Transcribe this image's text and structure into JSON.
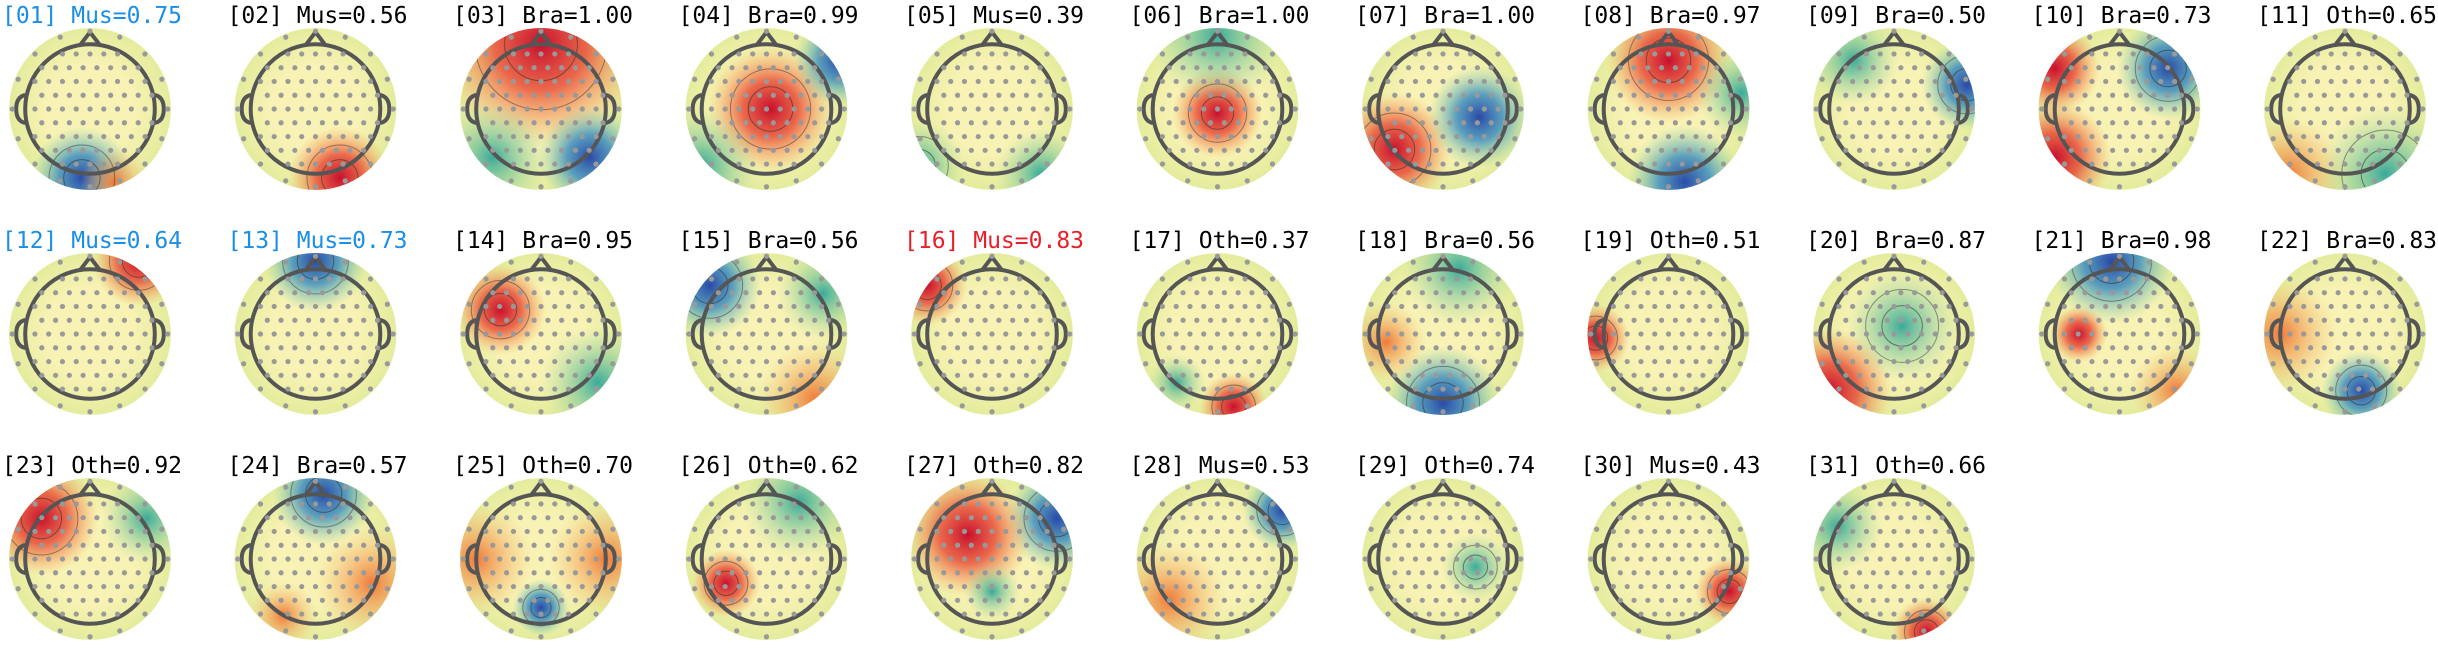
{
  "components": [
    {
      "title": "[01] Mus=0.75",
      "color": "#1a8fe3"
    },
    {
      "title": "[02] Mus=0.56",
      "color": "#000000"
    },
    {
      "title": "[03] Bra=1.00",
      "color": "#000000"
    },
    {
      "title": "[04] Bra=0.99",
      "color": "#000000"
    },
    {
      "title": "[05] Mus=0.39",
      "color": "#000000"
    },
    {
      "title": "[06] Bra=1.00",
      "color": "#000000"
    },
    {
      "title": "[07] Bra=1.00",
      "color": "#000000"
    },
    {
      "title": "[08] Bra=0.97",
      "color": "#000000"
    },
    {
      "title": "[09] Bra=0.50",
      "color": "#000000"
    },
    {
      "title": "[10] Bra=0.73",
      "color": "#000000"
    },
    {
      "title": "[11] Oth=0.65",
      "color": "#000000"
    },
    {
      "title": "[12] Mus=0.64",
      "color": "#1a8fe3"
    },
    {
      "title": "[13] Mus=0.73",
      "color": "#1a8fe3"
    },
    {
      "title": "[14] Bra=0.95",
      "color": "#000000"
    },
    {
      "title": "[15] Bra=0.56",
      "color": "#000000"
    },
    {
      "title": "[16] Mus=0.83",
      "color": "#e8202a"
    },
    {
      "title": "[17] Oth=0.37",
      "color": "#000000"
    },
    {
      "title": "[18] Bra=0.56",
      "color": "#000000"
    },
    {
      "title": "[19] Oth=0.51",
      "color": "#000000"
    },
    {
      "title": "[20] Bra=0.87",
      "color": "#000000"
    },
    {
      "title": "[21] Bra=0.98",
      "color": "#000000"
    },
    {
      "title": "[22] Bra=0.83",
      "color": "#000000"
    },
    {
      "title": "[23] Oth=0.92",
      "color": "#000000"
    },
    {
      "title": "[24] Bra=0.57",
      "color": "#000000"
    },
    {
      "title": "[25] Oth=0.70",
      "color": "#000000"
    },
    {
      "title": "[26] Oth=0.62",
      "color": "#000000"
    },
    {
      "title": "[27] Oth=0.82",
      "color": "#000000"
    },
    {
      "title": "[28] Mus=0.53",
      "color": "#000000"
    },
    {
      "title": "[29] Oth=0.74",
      "color": "#000000"
    },
    {
      "title": "[30] Mus=0.43",
      "color": "#000000"
    },
    {
      "title": "[31] Oth=0.66",
      "color": "#000000"
    }
  ]
}
